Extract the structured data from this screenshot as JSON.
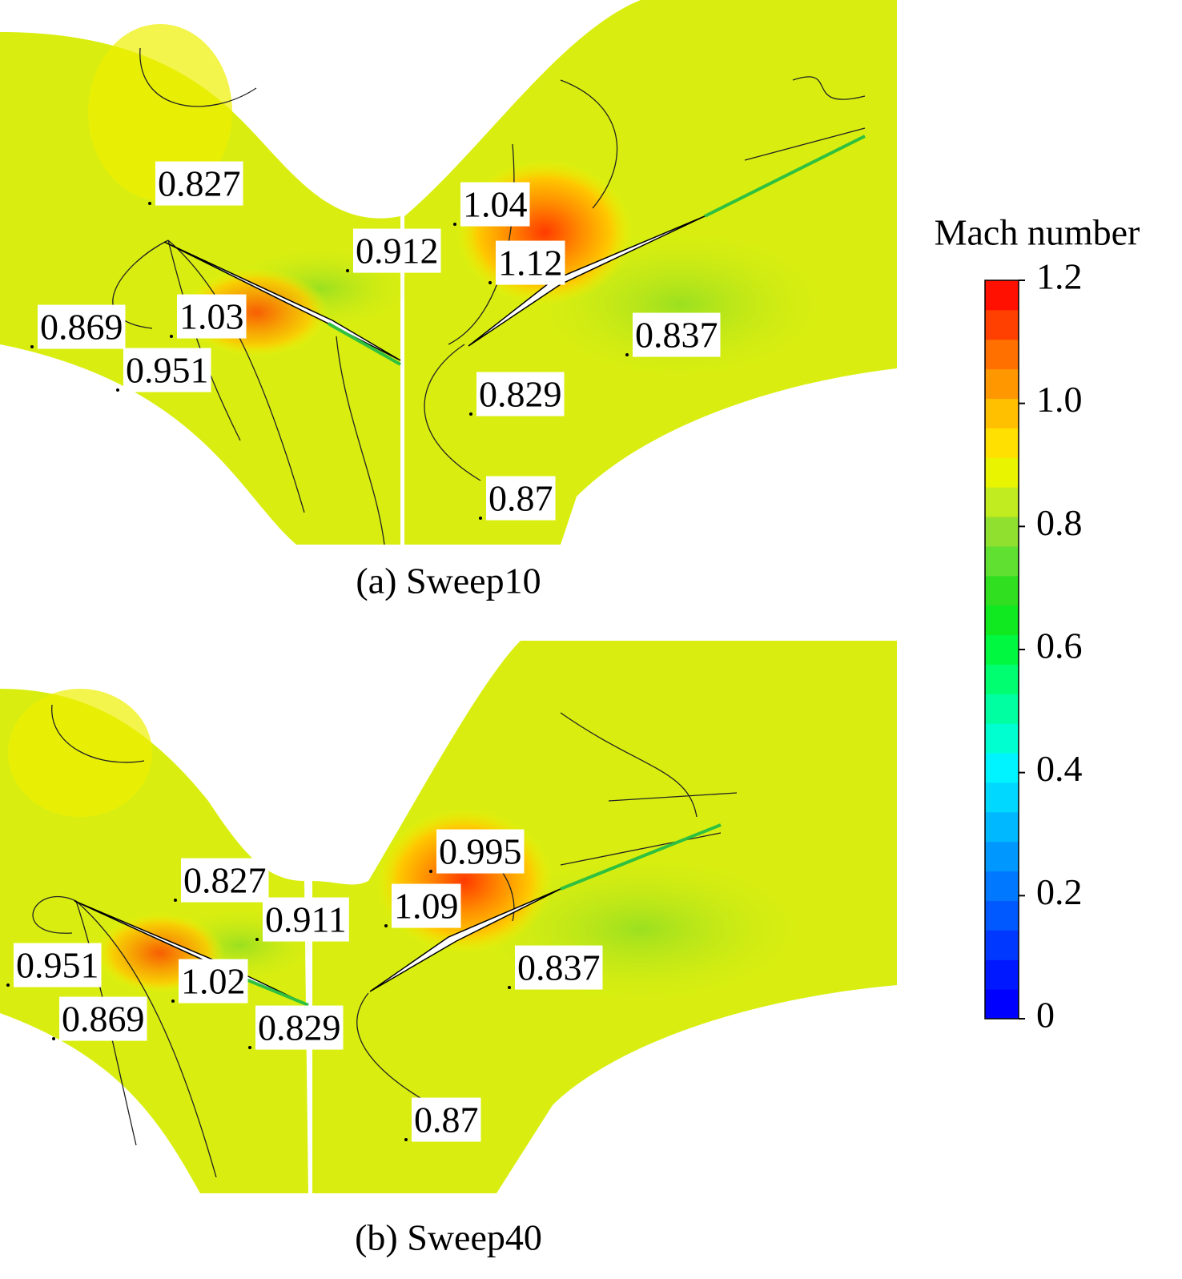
{
  "panels": [
    {
      "caption": "(a) Sweep10",
      "labels": [
        "0.827",
        "1.04",
        "0.912",
        "1.12",
        "0.869",
        "1.03",
        "0.951",
        "0.837",
        "0.829",
        "0.87"
      ]
    },
    {
      "caption": "(b) Sweep40",
      "labels": [
        "0.995",
        "0.827",
        "0.911",
        "1.09",
        "0.951",
        "1.02",
        "0.837",
        "0.869",
        "0.829",
        "0.87"
      ]
    }
  ],
  "colorbar": {
    "title": "Mach number",
    "range": [
      0,
      1.2
    ],
    "ticks": [
      0,
      0.2,
      0.4,
      0.6,
      0.8,
      {
        "value": 1,
        "label": "1.0"
      },
      1.2
    ],
    "colors": [
      "#0000ff",
      "#0018ff",
      "#0038ff",
      "#0058ff",
      "#0078ff",
      "#0098ff",
      "#00b8ff",
      "#00d8ff",
      "#00f4ff",
      "#00ffd0",
      "#00ffa0",
      "#00ff70",
      "#00f840",
      "#10e820",
      "#30e020",
      "#60e030",
      "#90e030",
      "#c0ec20",
      "#e8f400",
      "#ffe000",
      "#ffc000",
      "#ff9800",
      "#ff7000",
      "#ff4000",
      "#ff1000"
    ]
  }
}
